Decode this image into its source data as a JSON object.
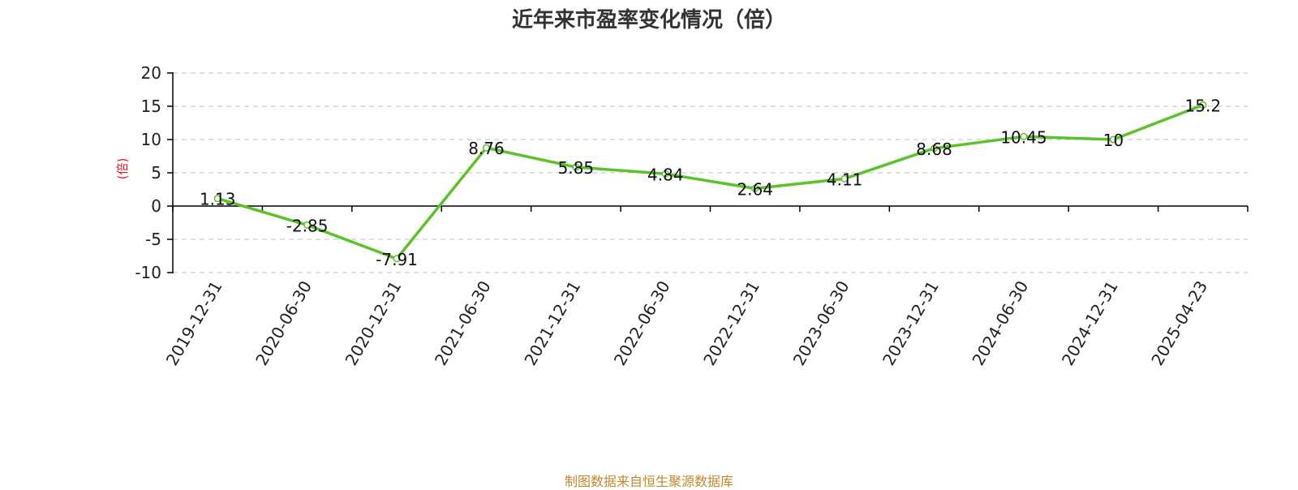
{
  "chart_data": {
    "type": "line",
    "title": "近年来市盈率变化情况（倍）",
    "ylabel": "(倍)",
    "xlabel": "",
    "categories": [
      "2019-12-31",
      "2020-06-30",
      "2020-12-31",
      "2021-06-30",
      "2021-12-31",
      "2022-06-30",
      "2022-12-31",
      "2023-06-30",
      "2023-12-31",
      "2024-06-30",
      "2024-12-31",
      "2025-04-23"
    ],
    "series": [
      {
        "values": [
          1.13,
          -2.85,
          -7.91,
          8.76,
          5.85,
          4.84,
          2.64,
          4.11,
          8.68,
          10.45,
          10,
          15.2
        ]
      }
    ],
    "data_labels": [
      "1.13",
      "-2.85",
      "-7.91",
      "8.76",
      "5.85",
      "4.84",
      "2.64",
      "4.11",
      "8.68",
      "10.45",
      "10",
      "15.2"
    ],
    "ylim": [
      -10,
      20
    ],
    "yticks": [
      "20",
      "15",
      "10",
      "5",
      "0",
      "-5",
      "-10"
    ],
    "grid": true,
    "colors": {
      "line": "#5cc22a",
      "ylabel": "#e8192c",
      "grid": "#cccccc",
      "axis": "#000000"
    }
  },
  "footer": "制图数据来自恒生聚源数据库"
}
